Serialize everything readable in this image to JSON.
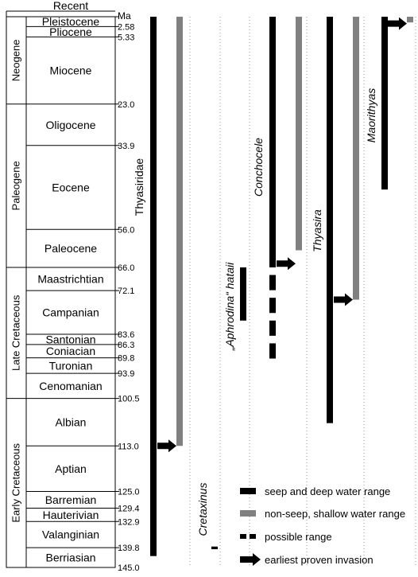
{
  "chart_data": {
    "type": "range-chart",
    "title": "",
    "unit_label": "Ma",
    "age_range": [
      0,
      145
    ],
    "periods": [
      {
        "name": "Neogene",
        "start": 0,
        "end": 23.0
      },
      {
        "name": "Paleogene",
        "start": 23.0,
        "end": 66.0
      },
      {
        "name": "Late Cretaceous",
        "start": 66.0,
        "end": 100.5
      },
      {
        "name": "Early Cretaceous",
        "start": 100.5,
        "end": 145.0
      }
    ],
    "stages": [
      {
        "name": "Recent",
        "start": 0,
        "end": 0
      },
      {
        "name": "Pleistocene",
        "start": 0,
        "end": 2.58
      },
      {
        "name": "Pliocene",
        "start": 2.58,
        "end": 5.33
      },
      {
        "name": "Miocene",
        "start": 5.33,
        "end": 23.0
      },
      {
        "name": "Oligocene",
        "start": 23.0,
        "end": 33.9
      },
      {
        "name": "Eocene",
        "start": 33.9,
        "end": 56.0
      },
      {
        "name": "Paleocene",
        "start": 56.0,
        "end": 66.0
      },
      {
        "name": "Maastrichtian",
        "start": 66.0,
        "end": 72.1
      },
      {
        "name": "Campanian",
        "start": 72.1,
        "end": 83.6
      },
      {
        "name": "Santonian",
        "start": 83.6,
        "end": 86.3
      },
      {
        "name": "Coniacian",
        "start": 86.3,
        "end": 89.8
      },
      {
        "name": "Turonian",
        "start": 89.8,
        "end": 93.9
      },
      {
        "name": "Cenomanian",
        "start": 93.9,
        "end": 100.5
      },
      {
        "name": "Albian",
        "start": 100.5,
        "end": 113.0
      },
      {
        "name": "Aptian",
        "start": 113.0,
        "end": 125.0
      },
      {
        "name": "Barremian",
        "start": 125.0,
        "end": 129.4
      },
      {
        "name": "Hauterivian",
        "start": 129.4,
        "end": 132.9
      },
      {
        "name": "Valanginian",
        "start": 132.9,
        "end": 139.8
      },
      {
        "name": "Berriasian",
        "start": 139.8,
        "end": 145.0
      }
    ],
    "boundary_labels": [
      "2.58",
      "5.33",
      "23.0",
      "33.9",
      "56.0",
      "66.0",
      "72.1",
      "83.6",
      "86.3",
      "89.8",
      "93.9",
      "100.5",
      "113.0",
      "125.0",
      "129.4",
      "132.9",
      "139.8",
      "145.0"
    ],
    "taxa": [
      {
        "name": "Thyasiridae",
        "italic": false,
        "seep_range": [
          0,
          142.0
        ],
        "shallow_range": [
          0,
          113.0
        ],
        "possible_ranges": [],
        "earliest_invasion": 113.0
      },
      {
        "name": "Cretaxinus",
        "italic": true,
        "seep_range": [
          139.5,
          140.2
        ],
        "shallow_range": null,
        "possible_ranges": [],
        "earliest_invasion": null
      },
      {
        "name": "„Aphrodina“ hataii",
        "italic": true,
        "seep_range": [
          66.0,
          80.0
        ],
        "shallow_range": null,
        "possible_ranges": [],
        "earliest_invasion": null
      },
      {
        "name": "Conchocele",
        "italic": true,
        "seep_range": [
          0,
          66.0
        ],
        "shallow_range": [
          0,
          61.5
        ],
        "possible_ranges": [
          [
            68.0,
            72.0
          ],
          [
            74.0,
            78.0
          ],
          [
            80.0,
            84.0
          ],
          [
            86.0,
            90.0
          ]
        ],
        "earliest_invasion": 65.0
      },
      {
        "name": "Thyasira",
        "italic": true,
        "seep_range": [
          0,
          107.0
        ],
        "shallow_range": [
          0,
          74.5
        ],
        "possible_ranges": [],
        "earliest_invasion": 74.5
      },
      {
        "name": "Maorithyas",
        "italic": true,
        "seep_range": [
          0,
          45.5
        ],
        "shallow_range": [
          0,
          1.5
        ],
        "possible_ranges": [],
        "earliest_invasion": 1.8
      }
    ],
    "legend": [
      {
        "key": "seep",
        "label": "seep and deep water range"
      },
      {
        "key": "shallow",
        "label": "non-seep, shallow water range"
      },
      {
        "key": "possible",
        "label": "possible range"
      },
      {
        "key": "invasion",
        "label": "earliest proven invasion"
      }
    ],
    "colors": {
      "seep": "#000000",
      "shallow": "#808080",
      "arrow": "#000000"
    }
  }
}
